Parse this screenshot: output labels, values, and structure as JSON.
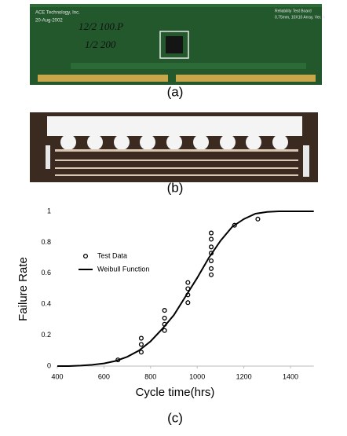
{
  "panels": {
    "a": "(a)",
    "b": "(b)",
    "c": "(c)"
  },
  "board": {
    "maker": "ACE Technology, Inc.",
    "date": "20-Aug-2002",
    "note1": "12/2 100.P",
    "note2": "1/2 200",
    "name": "Reliability Test Board",
    "spec": "0.75mm, 10X10 Array, Ver. A"
  },
  "chart_data": {
    "type": "line",
    "xlabel": "Cycle time(hrs)",
    "ylabel": "Failure Rate",
    "xlim": [
      400,
      1500
    ],
    "xticks": [
      400,
      600,
      800,
      1000,
      1200,
      1400
    ],
    "ylim": [
      0,
      1
    ],
    "yticks": [
      0,
      0.2,
      0.4,
      0.6,
      0.8,
      1
    ],
    "grid": false,
    "legend": "left",
    "series": [
      {
        "name": "Test Data",
        "style": "marker",
        "color": "#000000",
        "x": [
          660,
          760,
          760,
          760,
          860,
          860,
          860,
          860,
          960,
          960,
          960,
          960,
          1060,
          1060,
          1060,
          1060,
          1060,
          1060,
          1060,
          1160,
          1260
        ],
        "values": [
          0.04,
          0.18,
          0.14,
          0.09,
          0.36,
          0.31,
          0.27,
          0.23,
          0.54,
          0.5,
          0.46,
          0.41,
          0.86,
          0.82,
          0.77,
          0.73,
          0.68,
          0.63,
          0.59,
          0.91,
          0.95
        ]
      },
      {
        "name": "Weibull Function",
        "style": "line",
        "color": "#000000",
        "x": [
          400,
          450,
          500,
          550,
          600,
          650,
          700,
          750,
          800,
          850,
          900,
          950,
          1000,
          1050,
          1100,
          1150,
          1200,
          1250,
          1300,
          1350,
          1400,
          1450,
          1500
        ],
        "values": [
          0,
          0,
          0.003,
          0.008,
          0.017,
          0.033,
          0.06,
          0.1,
          0.16,
          0.24,
          0.33,
          0.45,
          0.57,
          0.7,
          0.81,
          0.9,
          0.95,
          0.985,
          0.996,
          1,
          1,
          1,
          1
        ]
      }
    ]
  }
}
